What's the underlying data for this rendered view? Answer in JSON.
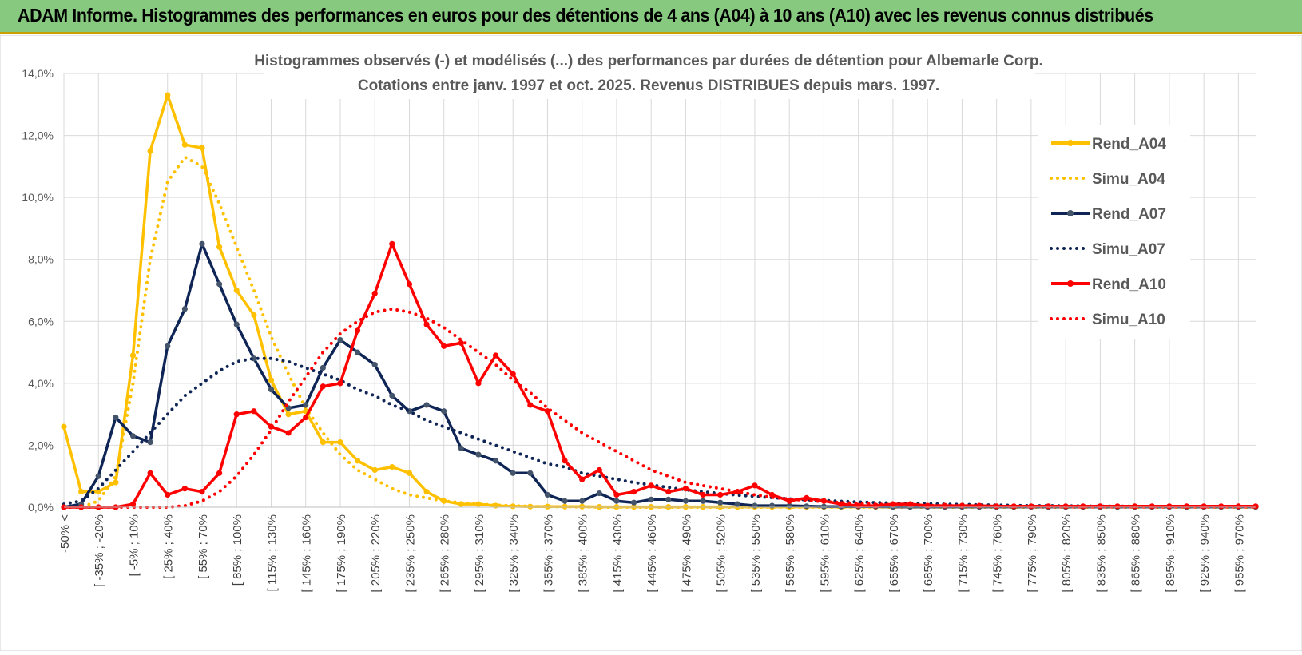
{
  "header": {
    "title": "ADAM Informe. Histogrammes des performances en euros pour des détentions de 4 ans (A04) à 10 ans (A10) avec les revenus connus distribués"
  },
  "colors": {
    "header_bg": "#86c97f",
    "a04": "#ffc000",
    "a07": "#0f2556",
    "a10": "#ff0000",
    "grid": "#d9d9d9"
  },
  "chart_data": {
    "type": "line",
    "title": "Histogrammes observés (-) et modélisés (...) des performances par durées de détention pour Albemarle Corp.",
    "subtitle": "Cotations entre janv. 1997 et oct. 2025.  Revenus DISTRIBUES depuis mars. 1997.",
    "xlabel": "",
    "ylabel": "",
    "ylim": [
      0,
      0.14
    ],
    "y_ticks": [
      "0,0%",
      "2,0%",
      "4,0%",
      "6,0%",
      "8,0%",
      "10,0%",
      "12,0%",
      "14,0%"
    ],
    "x_tick_labels": [
      "-50% <",
      "[ -35% ; -20%",
      "[ -5% ; 10%",
      "[ 25% ; 40%",
      "[ 55% ; 70%",
      "[ 85% ; 100%",
      "[ 115% ; 130%",
      "[ 145% ; 160%",
      "[ 175% ; 190%",
      "[ 205% ; 220%",
      "[ 235% ; 250%",
      "[ 265% ; 280%",
      "[ 295% ; 310%",
      "[ 325% ; 340%",
      "[ 355% ; 370%",
      "[ 385% ; 400%",
      "[ 415% ; 430%",
      "[ 445% ; 460%",
      "[ 475% ; 490%",
      "[ 505% ; 520%",
      "[ 535% ; 550%",
      "[ 565% ; 580%",
      "[ 595% ; 610%",
      "[ 625% ; 640%",
      "[ 655% ; 670%",
      "[ 685% ; 700%",
      "[ 715% ; 730%",
      "[ 745% ; 760%",
      "[ 775% ; 790%",
      "[ 805% ; 820%",
      "[ 835% ; 850%",
      "[ 865% ; 880%",
      "[ 895% ; 910%",
      "[ 925% ; 940%",
      "[ 955% ; 970%"
    ],
    "legend_position": "right",
    "series": [
      {
        "name": "Rend_A04",
        "style": "solid",
        "color": "#ffc000",
        "values": [
          0.026,
          0.005,
          0.005,
          0.008,
          0.049,
          0.115,
          0.133,
          0.117,
          0.116,
          0.084,
          0.07,
          0.062,
          0.041,
          0.03,
          0.031,
          0.021,
          0.021,
          0.015,
          0.012,
          0.013,
          0.011,
          0.005,
          0.002,
          0.001,
          0.001,
          0.0005,
          0.0003,
          0.0002,
          0.0002,
          0.0002,
          0.0002,
          0.0001,
          0.0001,
          0.0001,
          0.0001,
          0.0001,
          0.0001,
          0.0001,
          0.0001,
          0.0001,
          0.0001,
          0.0001,
          0.0001,
          0.0001,
          0.0001,
          0.0001,
          0.0001,
          0.0001,
          0.0001,
          0.0001,
          0.0001,
          0.0001,
          0.0001,
          0.0001,
          0.0001,
          0.0001,
          0.0001,
          0.0001,
          0.0001,
          0.0001,
          0.0001,
          0.0001,
          0.0001,
          0.0001,
          0.0001,
          0.0001,
          0.0001,
          0.0001,
          0.0001,
          0.0001
        ]
      },
      {
        "name": "Simu_A04",
        "style": "dotted",
        "color": "#ffc000",
        "values": [
          0,
          0,
          0.002,
          0.01,
          0.04,
          0.08,
          0.105,
          0.113,
          0.11,
          0.098,
          0.084,
          0.07,
          0.055,
          0.043,
          0.032,
          0.024,
          0.017,
          0.012,
          0.009,
          0.006,
          0.004,
          0.003,
          0.002,
          0.0015,
          0.001,
          0.0007,
          0.0005,
          0.0003,
          0.0002,
          0.0001,
          0.0001,
          0,
          0,
          0,
          0,
          0,
          0,
          0,
          0,
          0,
          0,
          0,
          0,
          0,
          0,
          0,
          0,
          0,
          0,
          0,
          0,
          0,
          0,
          0,
          0,
          0,
          0,
          0,
          0,
          0,
          0,
          0,
          0,
          0,
          0,
          0,
          0,
          0,
          0,
          0
        ]
      },
      {
        "name": "Rend_A07",
        "style": "solid",
        "color": "#0f2556",
        "values": [
          0,
          0.001,
          0.01,
          0.029,
          0.023,
          0.021,
          0.052,
          0.064,
          0.085,
          0.072,
          0.059,
          0.048,
          0.038,
          0.032,
          0.033,
          0.045,
          0.054,
          0.05,
          0.046,
          0.036,
          0.031,
          0.033,
          0.031,
          0.019,
          0.017,
          0.015,
          0.011,
          0.011,
          0.004,
          0.002,
          0.002,
          0.0045,
          0.002,
          0.0015,
          0.0025,
          0.0025,
          0.002,
          0.002,
          0.0015,
          0.001,
          0.0005,
          0.0005,
          0.0005,
          0.0003,
          0.0002,
          0.0002,
          0.0002,
          0.0002,
          0.0001,
          0.0001,
          0.0001,
          0.0001,
          0.0001,
          0.0001,
          0.0001,
          0.0001,
          0.0001,
          0.0001,
          0.0001,
          0.0001,
          0.0001,
          0.0001,
          0.0001,
          0.0001,
          0.0001,
          0.0001,
          0.0001,
          0.0001,
          0.0001,
          0.0001
        ]
      },
      {
        "name": "Simu_A07",
        "style": "dotted",
        "color": "#0f2556",
        "values": [
          0.001,
          0.002,
          0.006,
          0.012,
          0.018,
          0.024,
          0.03,
          0.036,
          0.04,
          0.044,
          0.047,
          0.048,
          0.048,
          0.047,
          0.045,
          0.043,
          0.041,
          0.038,
          0.036,
          0.033,
          0.031,
          0.028,
          0.026,
          0.024,
          0.022,
          0.02,
          0.018,
          0.016,
          0.014,
          0.013,
          0.011,
          0.01,
          0.009,
          0.008,
          0.0072,
          0.0064,
          0.0056,
          0.005,
          0.0044,
          0.0039,
          0.0035,
          0.0031,
          0.0027,
          0.0024,
          0.0022,
          0.0019,
          0.0017,
          0.0015,
          0.0014,
          0.0012,
          0.0011,
          0.001,
          0.0009,
          0.0008,
          0.0007,
          0.0006,
          0.0005,
          0.0005,
          0.0004,
          0.0004,
          0.0003,
          0.0003,
          0.0003,
          0.0002,
          0.0002,
          0.0002,
          0.0002,
          0.0002,
          0.0002,
          0.0002
        ]
      },
      {
        "name": "Rend_A10",
        "style": "solid",
        "color": "#ff0000",
        "values": [
          0,
          0,
          0,
          0,
          0.001,
          0.011,
          0.004,
          0.006,
          0.005,
          0.011,
          0.03,
          0.031,
          0.026,
          0.024,
          0.029,
          0.039,
          0.04,
          0.057,
          0.069,
          0.085,
          0.072,
          0.059,
          0.052,
          0.053,
          0.04,
          0.049,
          0.043,
          0.033,
          0.031,
          0.015,
          0.009,
          0.012,
          0.004,
          0.005,
          0.007,
          0.005,
          0.006,
          0.004,
          0.004,
          0.005,
          0.007,
          0.004,
          0.002,
          0.003,
          0.002,
          0.001,
          0.0005,
          0.0005,
          0.001,
          0.001,
          0.0005,
          0.0005,
          0.0005,
          0.0005,
          0.0003,
          0.0003,
          0.0003,
          0.0003,
          0.0003,
          0.0003,
          0.0003,
          0.0003,
          0.0003,
          0.0003,
          0.0003,
          0.0003,
          0.0003,
          0.0003,
          0.0003,
          0.0003
        ]
      },
      {
        "name": "Simu_A10",
        "style": "dotted",
        "color": "#ff0000",
        "values": [
          0,
          0,
          0,
          0,
          0,
          0,
          0,
          0.0005,
          0.002,
          0.005,
          0.01,
          0.017,
          0.025,
          0.034,
          0.042,
          0.05,
          0.056,
          0.06,
          0.063,
          0.064,
          0.063,
          0.061,
          0.058,
          0.054,
          0.05,
          0.046,
          0.041,
          0.037,
          0.032,
          0.028,
          0.024,
          0.021,
          0.018,
          0.015,
          0.012,
          0.01,
          0.008,
          0.007,
          0.006,
          0.005,
          0.004,
          0.0032,
          0.0026,
          0.0022,
          0.0018,
          0.0015,
          0.0012,
          0.001,
          0.0008,
          0.0007,
          0.0006,
          0.0005,
          0.0004,
          0.0003,
          0.0003,
          0.0002,
          0.0002,
          0.0002,
          0.0001,
          0.0001,
          0.0001,
          0.0001,
          0.0001,
          0.0001,
          0.0001,
          0.0001,
          0.0001,
          0.0001,
          0.0001,
          0.0001
        ]
      }
    ]
  }
}
